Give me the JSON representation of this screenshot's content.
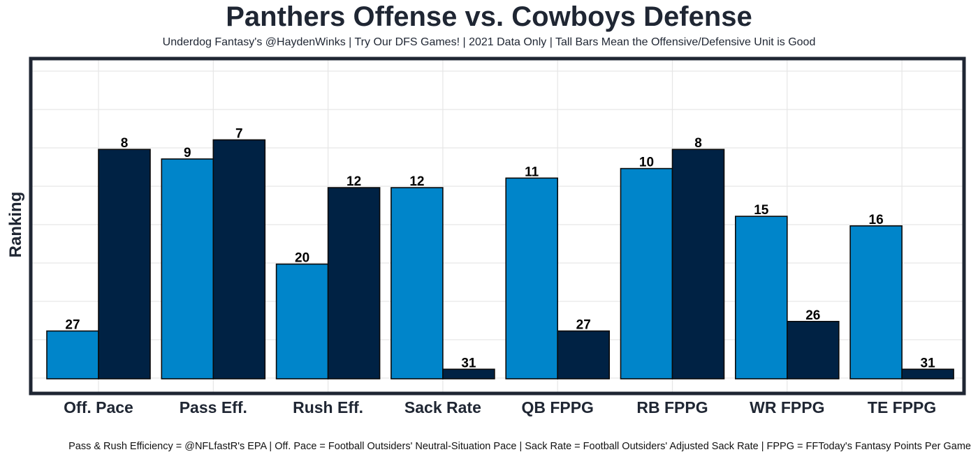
{
  "chart_data": {
    "type": "bar",
    "title": "Panthers Offense vs. Cowboys Defense",
    "subtitle": "Underdog Fantasy's @HaydenWinks | Try Our DFS Games! | 2021 Data Only | Tall Bars Mean the Offensive/Defensive Unit is Good",
    "caption": "Pass & Rush Efficiency = @NFLfastR's EPA | Off. Pace = Football Outsiders' Neutral-Situation Pace | Sack Rate = Football Outsiders' Adjusted Sack Rate | FPPG = FFToday's Fantasy Points Per Game",
    "ylabel": "Ranking",
    "xlabel": "",
    "categories": [
      "Off. Pace",
      "Pass Eff.",
      "Rush Eff.",
      "Sack Rate",
      "QB FPPG",
      "RB FPPG",
      "WR FPPG",
      "TE FPPG"
    ],
    "series": [
      {
        "values": [
          27,
          9,
          20,
          12,
          11,
          10,
          15,
          16
        ],
        "color": "#0085ca"
      },
      {
        "values": [
          8,
          7,
          12,
          31,
          27,
          8,
          26,
          31
        ],
        "color": "#002244"
      }
    ],
    "ylim": [
      1,
      32
    ],
    "y_reversed": true,
    "grid": true,
    "legend": "none"
  }
}
